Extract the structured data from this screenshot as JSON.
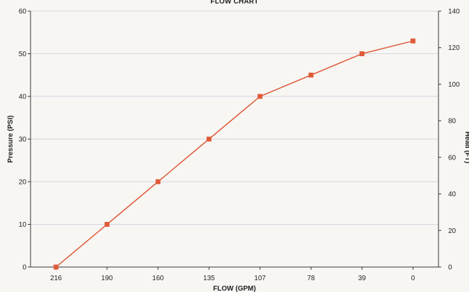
{
  "chart_data": {
    "type": "line",
    "title": "FLOW CHART",
    "xlabel": "FLOW (GPM)",
    "ylabel": "Pressure (PSI)",
    "y2label": "Head (FT)",
    "categories": [
      "216",
      "190",
      "160",
      "135",
      "107",
      "78",
      "39",
      "0"
    ],
    "series": [
      {
        "values": [
          0,
          10,
          20,
          30,
          40,
          45,
          50,
          53
        ],
        "color": "#e05a3a",
        "marker": "square"
      }
    ],
    "ylim": [
      0,
      60
    ],
    "y_ticks": [
      0,
      10,
      20,
      30,
      40,
      50,
      60
    ],
    "y2lim": [
      0,
      140
    ],
    "y2_ticks": [
      0,
      20,
      40,
      60,
      80,
      100,
      120,
      140
    ],
    "grid": true,
    "grid_color": "#c8c8d8"
  }
}
